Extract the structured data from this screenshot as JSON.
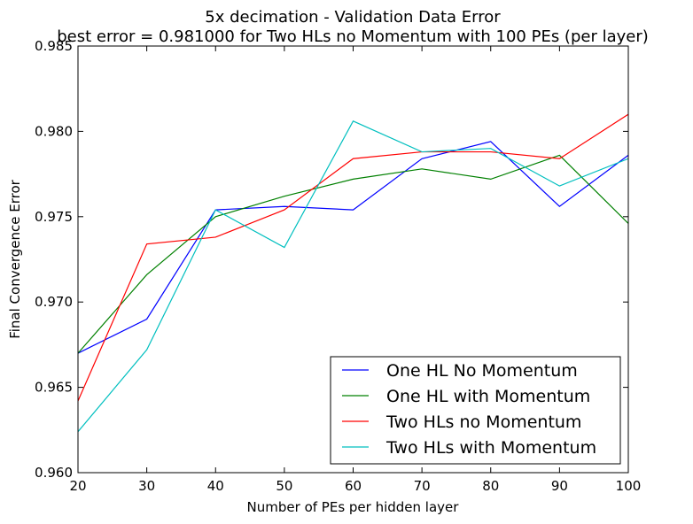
{
  "chart_data": {
    "type": "line",
    "title": "5x decimation - Validation Data Error",
    "subtitle": "best error = 0.981000 for Two HLs no Momentum with 100 PEs (per layer)",
    "xlabel": "Number of PEs per hidden layer",
    "ylabel": "Final Convergence Error",
    "xlim": [
      20,
      100
    ],
    "ylim": [
      0.96,
      0.985
    ],
    "x": [
      20,
      30,
      40,
      50,
      60,
      70,
      80,
      90,
      100
    ],
    "xticks": [
      "20",
      "30",
      "40",
      "50",
      "60",
      "70",
      "80",
      "90",
      "100"
    ],
    "yticks": [
      "0.960",
      "0.965",
      "0.970",
      "0.975",
      "0.980",
      "0.985"
    ],
    "grid": false,
    "legend_position": "bottom-right",
    "series": [
      {
        "name": "One HL No Momentum",
        "color": "#0000ff",
        "values": [
          0.967,
          0.969,
          0.9754,
          0.9756,
          0.9754,
          0.9784,
          0.9794,
          0.9756,
          0.9786
        ]
      },
      {
        "name": "One HL with Momentum",
        "color": "#008000",
        "values": [
          0.967,
          0.9716,
          0.975,
          0.9762,
          0.9772,
          0.9778,
          0.9772,
          0.9786,
          0.9746
        ]
      },
      {
        "name": "Two HLs no Momentum",
        "color": "#ff0000",
        "values": [
          0.9642,
          0.9734,
          0.9738,
          0.9754,
          0.9784,
          0.9788,
          0.9788,
          0.9784,
          0.981
        ]
      },
      {
        "name": "Two HLs with Momentum",
        "color": "#00bfbf",
        "values": [
          0.9624,
          0.9672,
          0.9754,
          0.9732,
          0.9806,
          0.9788,
          0.979,
          0.9768,
          0.9784
        ]
      }
    ]
  }
}
